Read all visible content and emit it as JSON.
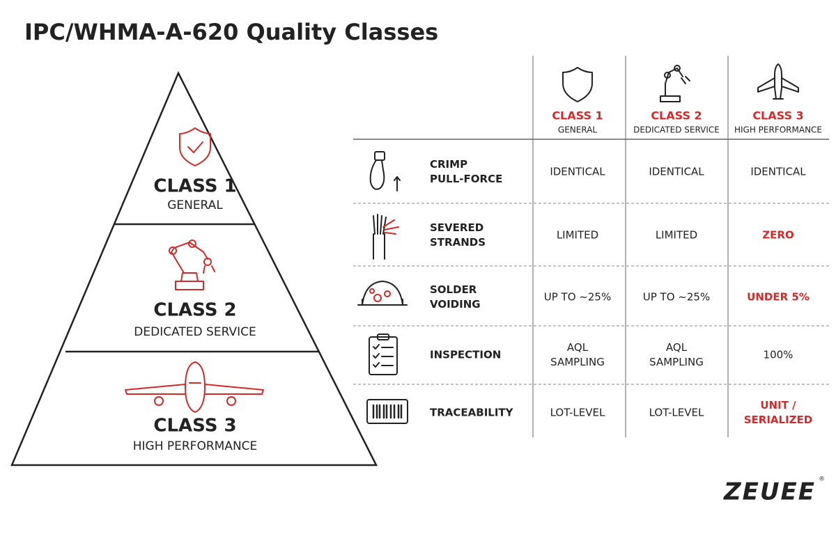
{
  "header": {
    "title": "IPC/WHMA-A-620 Quality Classes"
  },
  "pyramid": [
    {
      "label": "CLASS 1",
      "subtitle": "GENERAL"
    },
    {
      "label": "CLASS 2",
      "subtitle": "DEDICATED SERVICE"
    },
    {
      "label": "CLASS 3",
      "subtitle": "HIGH PERFORMANCE"
    }
  ],
  "table": {
    "columns": [
      {
        "label": "CLASS 1",
        "subtitle": "GENERAL"
      },
      {
        "label": "CLASS 2",
        "subtitle": "DEDICATED SERVICE"
      },
      {
        "label": "CLASS 3",
        "subtitle": "HIGH PERFORMANCE"
      }
    ],
    "rows": [
      {
        "label": [
          "CRIMP",
          "PULL-FORCE"
        ],
        "cells": [
          {
            "lines": [
              "IDENTICAL"
            ],
            "highlight": false
          },
          {
            "lines": [
              "IDENTICAL"
            ],
            "highlight": false
          },
          {
            "lines": [
              "IDENTICAL"
            ],
            "highlight": false
          }
        ]
      },
      {
        "label": [
          "SEVERED",
          "STRANDS"
        ],
        "cells": [
          {
            "lines": [
              "LIMITED"
            ],
            "highlight": false
          },
          {
            "lines": [
              "LIMITED"
            ],
            "highlight": false
          },
          {
            "lines": [
              "ZERO"
            ],
            "highlight": true
          }
        ]
      },
      {
        "label": [
          "SOLDER",
          "VOIDING"
        ],
        "cells": [
          {
            "lines": [
              "UP TO ~25%"
            ],
            "highlight": false
          },
          {
            "lines": [
              "UP TO ~25%"
            ],
            "highlight": false
          },
          {
            "lines": [
              "UNDER 5%"
            ],
            "highlight": true
          }
        ]
      },
      {
        "label": [
          "INSPECTION"
        ],
        "cells": [
          {
            "lines": [
              "AQL",
              "SAMPLING"
            ],
            "highlight": false
          },
          {
            "lines": [
              "AQL",
              "SAMPLING"
            ],
            "highlight": false
          },
          {
            "lines": [
              "100%"
            ],
            "highlight": false
          }
        ]
      },
      {
        "label": [
          "TRACEABILITY"
        ],
        "cells": [
          {
            "lines": [
              "LOT-LEVEL"
            ],
            "highlight": false
          },
          {
            "lines": [
              "LOT-LEVEL"
            ],
            "highlight": false
          },
          {
            "lines": [
              "UNIT /",
              "SERIALIZED"
            ],
            "highlight": true
          }
        ]
      }
    ]
  },
  "logo": {
    "text": "ZEUEE",
    "mark": "®"
  }
}
